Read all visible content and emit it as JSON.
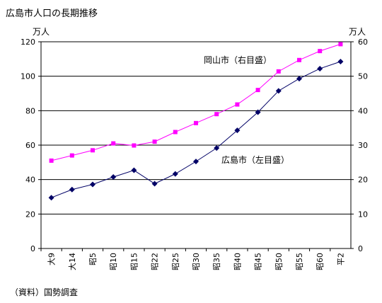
{
  "page": {
    "title": "広島市人口の長期推移",
    "source": "（資料）国勢調査"
  },
  "chart_data": {
    "type": "line",
    "title": "広島市人口の長期推移",
    "categories": [
      "大9",
      "大14",
      "昭5",
      "昭10",
      "昭15",
      "昭22",
      "昭25",
      "昭30",
      "昭35",
      "昭40",
      "昭45",
      "昭50",
      "昭55",
      "昭60",
      "平2"
    ],
    "left_axis": {
      "unit": "万人",
      "ylim": [
        0,
        120
      ],
      "ticks": [
        0,
        20,
        40,
        60,
        80,
        100,
        120
      ]
    },
    "right_axis": {
      "unit": "万人",
      "ylim": [
        0,
        60
      ],
      "ticks": [
        0,
        10,
        20,
        30,
        40,
        50,
        60
      ]
    },
    "grid": true,
    "series": [
      {
        "name": "広島市（左目盛）",
        "axis": "left",
        "color": "#000066",
        "marker": "diamond",
        "values": [
          29.5,
          34.2,
          37.2,
          41.5,
          45.4,
          37.6,
          43.3,
          50.5,
          58.3,
          68.6,
          79.1,
          91.5,
          98.6,
          104.4,
          108.5
        ]
      },
      {
        "name": "岡山市（右目盛）",
        "axis": "right",
        "color": "#ff00ff",
        "marker": "square",
        "values": [
          25.5,
          27.0,
          28.5,
          30.5,
          29.9,
          31.0,
          33.8,
          36.4,
          39.0,
          41.8,
          46.0,
          51.4,
          54.7,
          57.3,
          59.3
        ]
      }
    ]
  }
}
